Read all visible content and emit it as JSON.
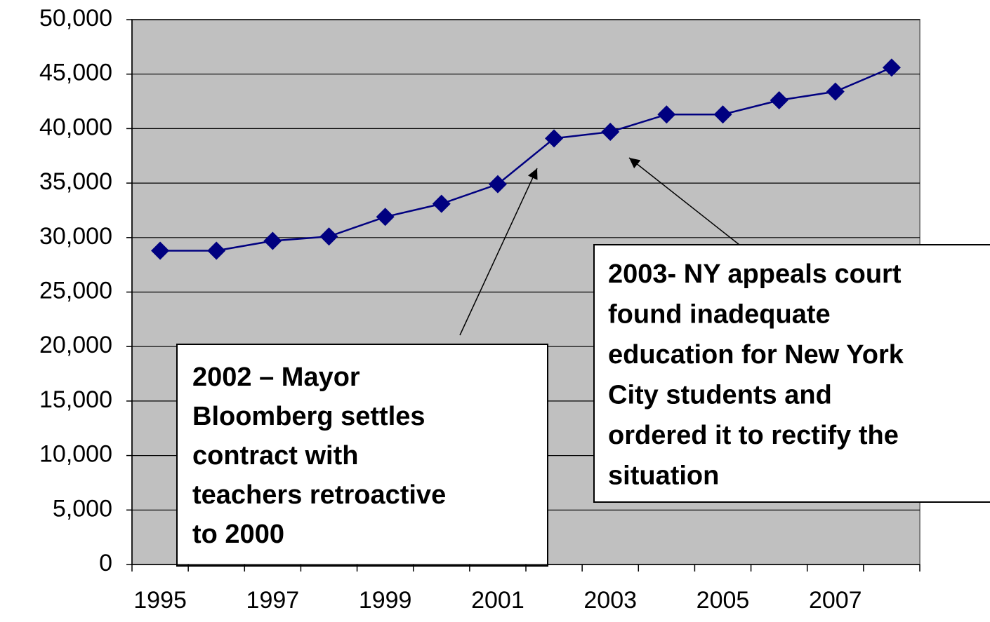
{
  "chart_data": {
    "type": "line",
    "categories": [
      "1995",
      null,
      "1997",
      null,
      "1999",
      null,
      "2001",
      null,
      "2003",
      null,
      "2005",
      null,
      "2007",
      null
    ],
    "series": [
      {
        "color": "#000080",
        "values": [
          28800,
          28800,
          29700,
          30100,
          31900,
          33100,
          34900,
          39100,
          39700,
          41300,
          41300,
          42600,
          43400,
          45600
        ]
      }
    ],
    "ylim": [
      0,
      50000
    ],
    "yticks": [
      0,
      {
        "value": 5000,
        "label": "5,000"
      },
      {
        "value": 10000,
        "label": "10,000"
      },
      {
        "value": 15000,
        "label": "15,000"
      },
      {
        "value": 20000,
        "label": "20,000"
      },
      {
        "value": 25000,
        "label": "25,000"
      },
      {
        "value": 30000,
        "label": "30,000"
      },
      {
        "value": 35000,
        "label": "35,000"
      },
      {
        "value": 40000,
        "label": "40,000"
      },
      {
        "value": 45000,
        "label": "45,000"
      },
      {
        "value": 50000,
        "label": "50,000"
      }
    ],
    "grid": true,
    "plot_background": "#c0c0c0",
    "annotations": [
      {
        "lines": [
          "2002 – Mayor",
          "Bloomberg settles",
          "contract with",
          "teachers retroactive",
          "to 2000"
        ]
      },
      {
        "lines": [
          "2003- NY appeals court",
          "found inadequate",
          "education for New York",
          "City students and",
          "ordered it to rectify the",
          "situation"
        ]
      }
    ]
  }
}
